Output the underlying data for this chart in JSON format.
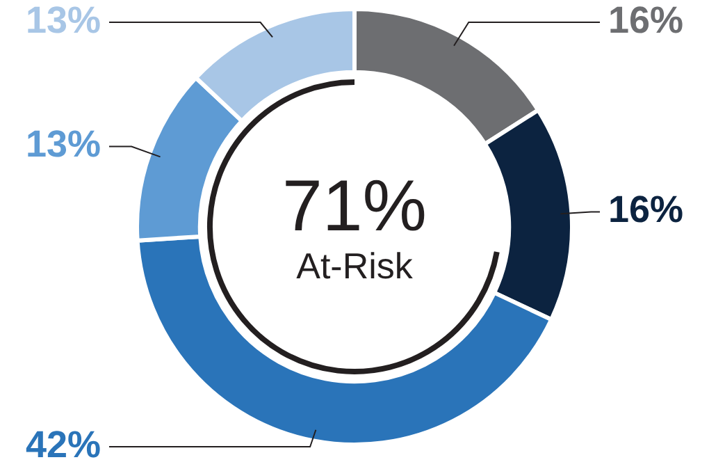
{
  "chart_data": {
    "type": "donut",
    "categories": [
      null,
      null,
      null,
      null,
      null
    ],
    "values": [
      16,
      16,
      42,
      13,
      13
    ],
    "colors": [
      "#6d6e71",
      "#0c2340",
      "#2a74b9",
      "#5e9bd4",
      "#a8c6e6"
    ],
    "value_labels": [
      "16%",
      "16%",
      "42%",
      "13%",
      "13%"
    ],
    "annotations": [
      "71%",
      "At-Risk"
    ],
    "legend": false
  }
}
